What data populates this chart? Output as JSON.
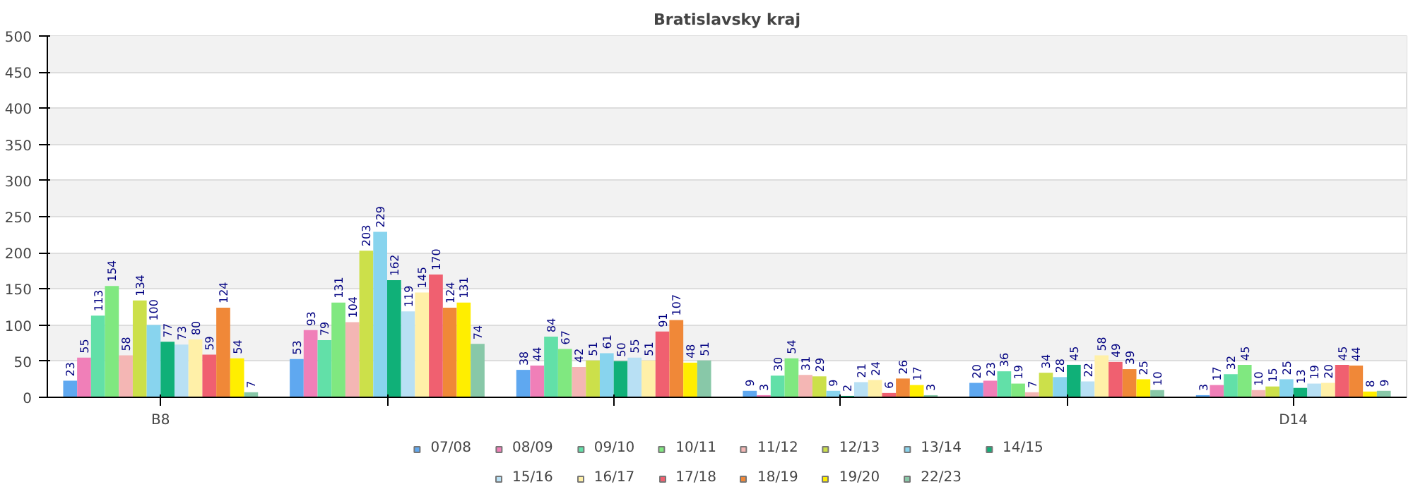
{
  "chart_data": {
    "type": "bar",
    "title": "Bratislavsky kraj",
    "categories": [
      "B8",
      null,
      null,
      null,
      null,
      "D14"
    ],
    "ylim": [
      0,
      500
    ],
    "yticks": [
      0,
      50,
      100,
      150,
      200,
      250,
      300,
      350,
      400,
      450,
      500
    ],
    "grid": "y",
    "legend": "bottom",
    "data_labels": true,
    "series": [
      {
        "name": "07/08",
        "color": "#5fa8f0",
        "values": [
          23,
          53,
          38,
          9,
          20,
          3
        ]
      },
      {
        "name": "08/09",
        "color": "#f07fb8",
        "values": [
          55,
          93,
          44,
          3,
          23,
          17
        ]
      },
      {
        "name": "09/10",
        "color": "#62e0a8",
        "values": [
          113,
          79,
          84,
          30,
          36,
          32
        ]
      },
      {
        "name": "10/11",
        "color": "#80e880",
        "values": [
          154,
          131,
          67,
          54,
          19,
          45
        ]
      },
      {
        "name": "11/12",
        "color": "#f4b6b4",
        "values": [
          58,
          104,
          42,
          31,
          7,
          10
        ]
      },
      {
        "name": "12/13",
        "color": "#cce04a",
        "values": [
          134,
          203,
          51,
          29,
          34,
          15
        ]
      },
      {
        "name": "13/14",
        "color": "#88d4ee",
        "values": [
          100,
          229,
          61,
          9,
          28,
          25
        ]
      },
      {
        "name": "14/15",
        "color": "#10b078",
        "values": [
          77,
          162,
          50,
          2,
          45,
          13
        ]
      },
      {
        "name": "15/16",
        "color": "#b8e0f4",
        "values": [
          73,
          119,
          55,
          21,
          22,
          19
        ]
      },
      {
        "name": "16/17",
        "color": "#fff0a8",
        "values": [
          80,
          145,
          51,
          24,
          58,
          20
        ]
      },
      {
        "name": "17/18",
        "color": "#f06070",
        "values": [
          59,
          170,
          91,
          6,
          49,
          45
        ]
      },
      {
        "name": "18/19",
        "color": "#f08838",
        "values": [
          124,
          124,
          107,
          26,
          39,
          44
        ]
      },
      {
        "name": "19/20",
        "color": "#ffee00",
        "values": [
          54,
          131,
          48,
          17,
          25,
          8
        ]
      },
      {
        "name": "22/23",
        "color": "#88c8a8",
        "values": [
          7,
          74,
          51,
          3,
          10,
          9
        ]
      }
    ]
  }
}
